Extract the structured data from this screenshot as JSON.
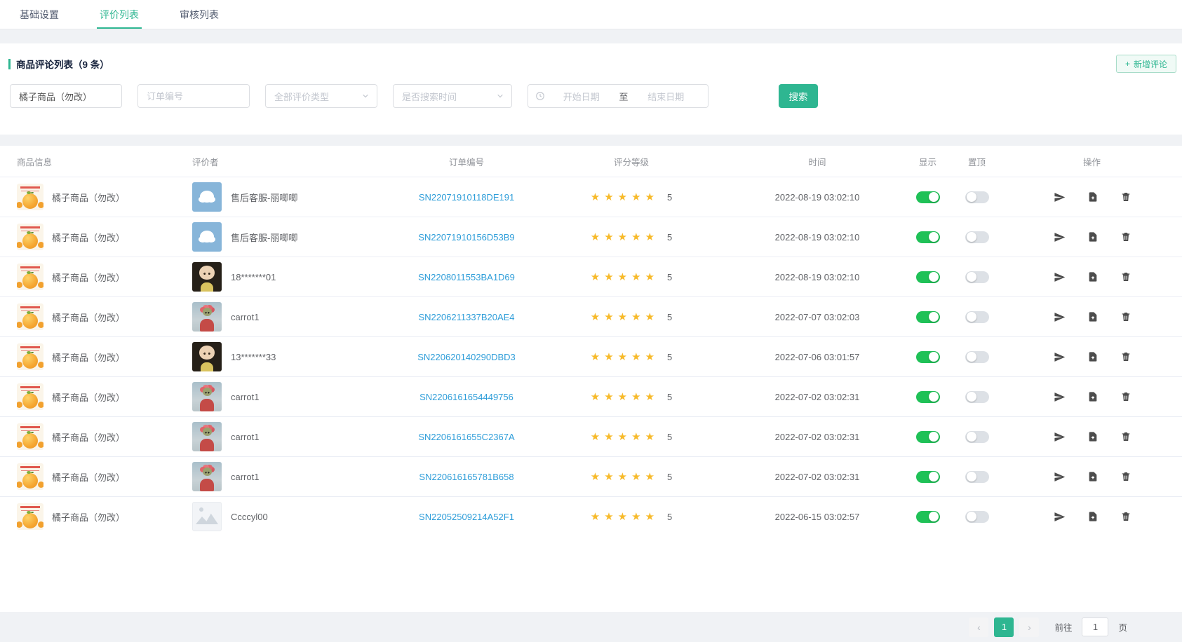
{
  "tabs": [
    {
      "label": "基础设置",
      "active": false
    },
    {
      "label": "评价列表",
      "active": true
    },
    {
      "label": "审核列表",
      "active": false
    }
  ],
  "panel": {
    "title": "商品评论列表（9 条）",
    "add_button": {
      "icon": "+",
      "label": "新增评论"
    },
    "filters": {
      "product_value": "橘子商品（勿改）",
      "order_placeholder": "订单编号",
      "type_select": "全部评价类型",
      "time_select": "是否搜索时间",
      "date_start_placeholder": "开始日期",
      "date_separator": "至",
      "date_end_placeholder": "结束日期",
      "search_label": "搜索"
    }
  },
  "table": {
    "headers": [
      "商品信息",
      "评价者",
      "订单编号",
      "评分等级",
      "时间",
      "显示",
      "置顶",
      "操作"
    ],
    "max_stars": 5,
    "rows": [
      {
        "product": "橘子商品（勿改）",
        "reviewer": "售后客服-丽唧唧",
        "avatar": "cloud",
        "order": "SN22071910118DE191",
        "rating": 5,
        "time": "2022-08-19 03:02:10",
        "display_on": true,
        "pinned": false
      },
      {
        "product": "橘子商品（勿改）",
        "reviewer": "售后客服-丽唧唧",
        "avatar": "cloud",
        "order": "SN22071910156D53B9",
        "rating": 5,
        "time": "2022-08-19 03:02:10",
        "display_on": true,
        "pinned": false
      },
      {
        "product": "橘子商品（勿改）",
        "reviewer": "18*******01",
        "avatar": "doll",
        "order": "SN2208011553BA1D69",
        "rating": 5,
        "time": "2022-08-19 03:02:10",
        "display_on": true,
        "pinned": false
      },
      {
        "product": "橘子商品（勿改）",
        "reviewer": "carrot1",
        "avatar": "carrot",
        "order": "SN2206211337B20AE4",
        "rating": 5,
        "time": "2022-07-07 03:02:03",
        "display_on": true,
        "pinned": false
      },
      {
        "product": "橘子商品（勿改）",
        "reviewer": "13*******33",
        "avatar": "doll",
        "order": "SN220620140290DBD3",
        "rating": 5,
        "time": "2022-07-06 03:01:57",
        "display_on": true,
        "pinned": false
      },
      {
        "product": "橘子商品（勿改）",
        "reviewer": "carrot1",
        "avatar": "carrot",
        "order": "SN2206161654449756",
        "rating": 5,
        "time": "2022-07-02 03:02:31",
        "display_on": true,
        "pinned": false
      },
      {
        "product": "橘子商品（勿改）",
        "reviewer": "carrot1",
        "avatar": "carrot",
        "order": "SN2206161655C2367A",
        "rating": 5,
        "time": "2022-07-02 03:02:31",
        "display_on": true,
        "pinned": false
      },
      {
        "product": "橘子商品（勿改）",
        "reviewer": "carrot1",
        "avatar": "carrot",
        "order": "SN220616165781B658",
        "rating": 5,
        "time": "2022-07-02 03:02:31",
        "display_on": true,
        "pinned": false
      },
      {
        "product": "橘子商品（勿改）",
        "reviewer": "Ccccyl00",
        "avatar": "placeholder",
        "order": "SN22052509214A52F1",
        "rating": 5,
        "time": "2022-06-15 03:02:57",
        "display_on": true,
        "pinned": false
      }
    ],
    "action_icons": [
      "send-icon",
      "file-add-icon",
      "trash-icon"
    ]
  },
  "pagination": {
    "prev": "‹",
    "current_page": "1",
    "next": "›",
    "goto_label": "前往",
    "goto_value": "1",
    "unit_label": "页"
  },
  "colors": {
    "accent": "#2eb691",
    "toggle_on": "#1fc157",
    "link": "#2d9dd9",
    "star": "#f7ba2a"
  }
}
